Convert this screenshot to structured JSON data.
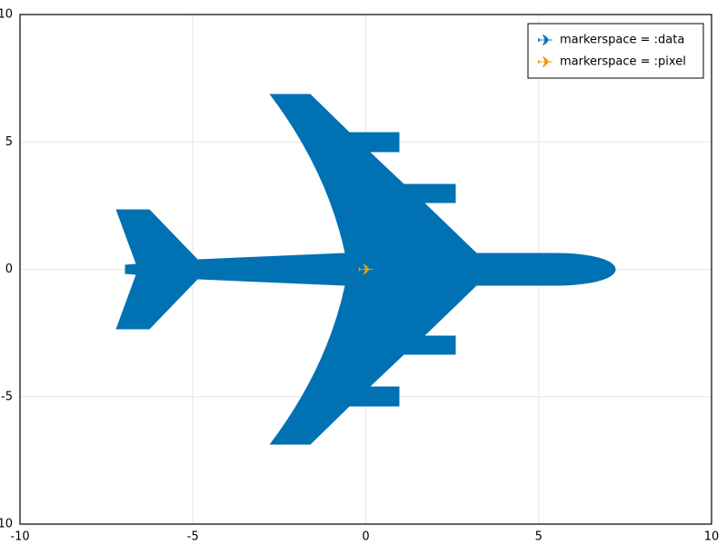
{
  "chart_data": {
    "type": "scatter",
    "x": [
      0
    ],
    "series": [
      {
        "name": "markerspace = :data",
        "color": "#0071b3",
        "values": [
          0
        ]
      },
      {
        "name": "markerspace = :pixel",
        "color": "#e69f00",
        "values": [
          0
        ]
      }
    ],
    "xlim": [
      -10,
      10
    ],
    "ylim": [
      -10,
      10
    ],
    "xticks": [
      -10,
      -5,
      0,
      5,
      10
    ],
    "yticks": [
      -10,
      -5,
      0,
      5,
      10
    ],
    "grid": true,
    "legend": "top-right"
  }
}
